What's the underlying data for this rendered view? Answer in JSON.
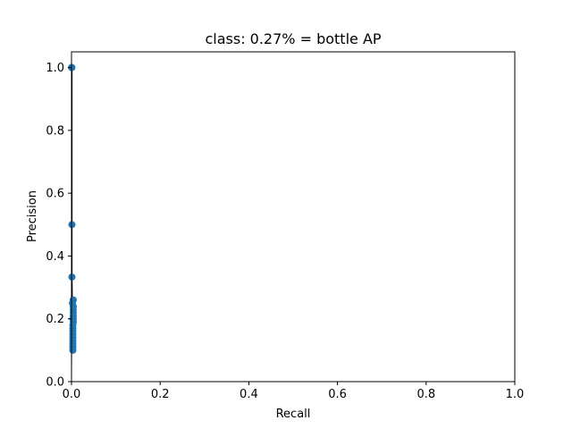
{
  "chart_data": {
    "type": "line",
    "title": "class: 0.27% = bottle AP",
    "xlabel": "Recall",
    "ylabel": "Precision",
    "xlim": [
      0.0,
      1.0
    ],
    "ylim": [
      0.0,
      1.05
    ],
    "x_ticks": [
      "0.0",
      "0.2",
      "0.4",
      "0.6",
      "0.8",
      "1.0"
    ],
    "y_ticks": [
      "0.0",
      "0.2",
      "0.4",
      "0.6",
      "0.8",
      "1.0"
    ],
    "grid": false,
    "colors": {
      "points": "#1f77b4",
      "curve": "#000000",
      "fill": "#d9b3c0"
    },
    "series": [
      {
        "points": [
          {
            "x": 0.0,
            "y": 1.0
          },
          {
            "x": 0.001,
            "y": 1.0
          },
          {
            "x": 0.001,
            "y": 0.5
          },
          {
            "x": 0.001,
            "y": 0.333
          },
          {
            "x": 0.002,
            "y": 0.25
          },
          {
            "x": 0.003,
            "y": 0.2
          },
          {
            "x": 0.004,
            "y": 0.26
          },
          {
            "x": 0.004,
            "y": 0.24
          },
          {
            "x": 0.004,
            "y": 0.23
          },
          {
            "x": 0.004,
            "y": 0.22
          },
          {
            "x": 0.004,
            "y": 0.21
          },
          {
            "x": 0.004,
            "y": 0.2
          },
          {
            "x": 0.004,
            "y": 0.19
          },
          {
            "x": 0.003,
            "y": 0.18
          },
          {
            "x": 0.003,
            "y": 0.17
          },
          {
            "x": 0.003,
            "y": 0.16
          },
          {
            "x": 0.003,
            "y": 0.15
          },
          {
            "x": 0.003,
            "y": 0.14
          },
          {
            "x": 0.003,
            "y": 0.13
          },
          {
            "x": 0.003,
            "y": 0.12
          },
          {
            "x": 0.003,
            "y": 0.11
          },
          {
            "x": 0.003,
            "y": 0.1
          }
        ]
      }
    ]
  }
}
